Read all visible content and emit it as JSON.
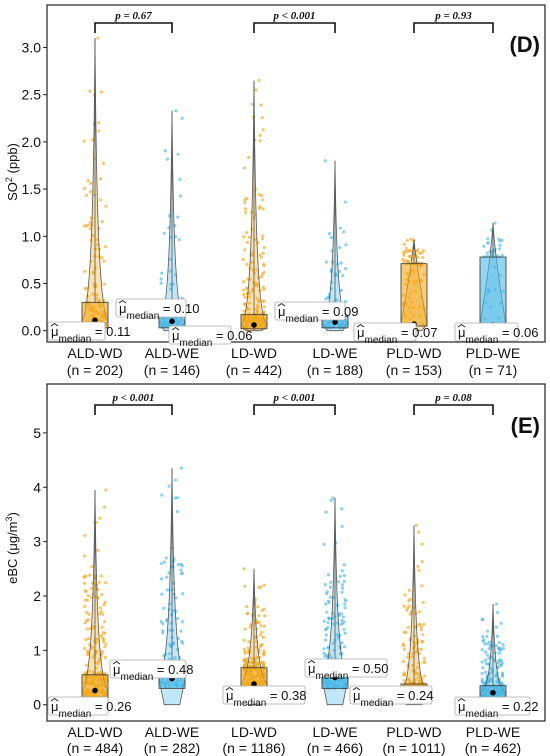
{
  "colors": {
    "wd": "#f2a81d",
    "we": "#4bb9e6",
    "frame": "#222222"
  },
  "chart_data": [
    {
      "type": "violin-box-scatter",
      "panel_letter": "(D)",
      "ylabel_main": "SO",
      "ylabel_sub": "2",
      "ylabel_rest": " (ppb)",
      "ylim": [
        -0.12,
        3.45
      ],
      "yticks": [
        0.0,
        0.5,
        1.0,
        1.5,
        2.0,
        2.5,
        3.0
      ],
      "ytick_labels": [
        "0.0",
        "0.5",
        "1.0",
        "1.5",
        "2.0",
        "2.5",
        "3.0"
      ],
      "groups": [
        {
          "name": "ALD-WD",
          "n_label": "(n = 202)",
          "type": "wd",
          "median": 0.11,
          "median_label": "0.11",
          "q1": 0.03,
          "q3": 0.3,
          "max": 3.1
        },
        {
          "name": "ALD-WE",
          "n_label": "(n = 146)",
          "type": "we",
          "median": 0.1,
          "median_label": "0.10",
          "q1": 0.03,
          "q3": 0.16,
          "max": 2.33
        },
        {
          "name": "LD-WD",
          "n_label": "(n = 442)",
          "type": "wd",
          "median": 0.06,
          "median_label": "0.06",
          "q1": 0.02,
          "q3": 0.17,
          "max": 2.65
        },
        {
          "name": "LD-WE",
          "n_label": "(n = 188)",
          "type": "we",
          "median": 0.09,
          "median_label": "0.09",
          "q1": 0.03,
          "q3": 0.15,
          "max": 1.8
        },
        {
          "name": "PLD-WD",
          "n_label": "(n = 153)",
          "type": "wd",
          "median": 0.07,
          "median_label": "0.07",
          "q1": 0.05,
          "q3": 0.71,
          "max": 0.97
        },
        {
          "name": "PLD-WE",
          "n_label": "(n = 71)",
          "type": "we",
          "median": 0.06,
          "median_label": "0.06",
          "q1": 0.05,
          "q3": 0.78,
          "max": 1.14
        }
      ],
      "comparisons": [
        {
          "groups": [
            "ALD-WD",
            "ALD-WE"
          ],
          "p_label": "p = 0.67"
        },
        {
          "groups": [
            "LD-WD",
            "LD-WE"
          ],
          "p_label": "p < 0.001"
        },
        {
          "groups": [
            "PLD-WD",
            "PLD-WE"
          ],
          "p_label": "p = 0.93"
        }
      ]
    },
    {
      "type": "violin-box-scatter",
      "panel_letter": "(E)",
      "ylabel_main": "eBC (μg/m",
      "ylabel_sub": "3",
      "ylabel_rest": ")",
      "ylim": [
        -0.3,
        5.9
      ],
      "yticks": [
        0,
        1,
        2,
        3,
        4,
        5
      ],
      "ytick_labels": [
        "0",
        "1",
        "2",
        "3",
        "4",
        "5"
      ],
      "groups": [
        {
          "name": "ALD-WD",
          "n_label": "(n = 484)",
          "type": "wd",
          "median": 0.26,
          "median_label": "0.26",
          "q1": 0.12,
          "q3": 0.55,
          "max": 3.95
        },
        {
          "name": "ALD-WE",
          "n_label": "(n = 282)",
          "type": "we",
          "median": 0.48,
          "median_label": "0.48",
          "q1": 0.3,
          "q3": 0.75,
          "max": 4.35
        },
        {
          "name": "LD-WD",
          "n_label": "(n = 1186)",
          "type": "wd",
          "median": 0.38,
          "median_label": "0.38",
          "q1": 0.3,
          "q3": 0.68,
          "max": 2.5
        },
        {
          "name": "LD-WE",
          "n_label": "(n = 466)",
          "type": "we",
          "median": 0.5,
          "median_label": "0.50",
          "q1": 0.3,
          "q3": 0.72,
          "max": 3.8
        },
        {
          "name": "PLD-WD",
          "n_label": "(n = 1011)",
          "type": "wd",
          "median": 0.24,
          "median_label": "0.24",
          "q1": 0.15,
          "q3": 0.38,
          "max": 3.3
        },
        {
          "name": "PLD-WE",
          "n_label": "(n = 462)",
          "type": "we",
          "median": 0.22,
          "median_label": "0.22",
          "q1": 0.12,
          "q3": 0.35,
          "max": 1.85
        }
      ],
      "comparisons": [
        {
          "groups": [
            "ALD-WD",
            "ALD-WE"
          ],
          "p_label": "p < 0.001"
        },
        {
          "groups": [
            "LD-WD",
            "LD-WE"
          ],
          "p_label": "p < 0.001"
        },
        {
          "groups": [
            "PLD-WD",
            "PLD-WE"
          ],
          "p_label": "p = 0.08"
        }
      ]
    }
  ],
  "median_prefix": "μ",
  "median_subscript": "median",
  "median_eq": " = "
}
